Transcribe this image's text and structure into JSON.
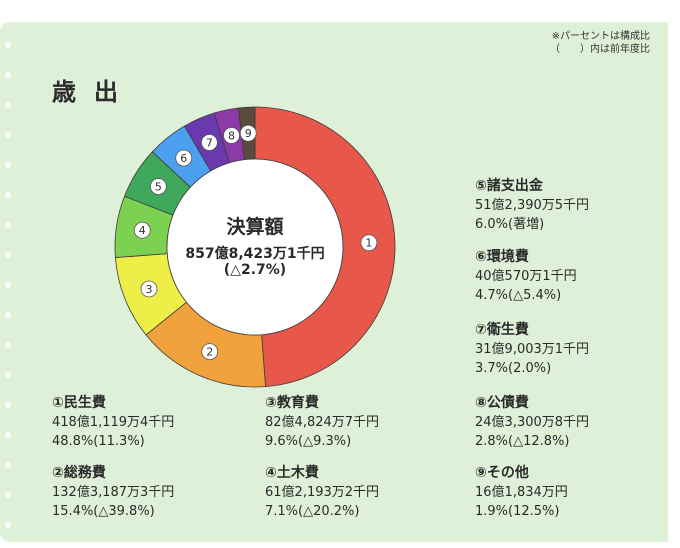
{
  "note": {
    "line1": "※パーセントは構成比",
    "line2": "（　　）内は前年度比"
  },
  "title": "歳出",
  "center": {
    "title": "決算額",
    "amount": "857億8,423万1千円",
    "rate": "(△2.7%)"
  },
  "chart_data": {
    "type": "pie",
    "donut": true,
    "unit_note": "構成比(%)",
    "categories": [
      "民生費",
      "総務費",
      "教育費",
      "土木費",
      "諸支出金",
      "環境費",
      "衛生費",
      "公債費",
      "その他"
    ],
    "markers": [
      "①",
      "②",
      "③",
      "④",
      "⑤",
      "⑥",
      "⑦",
      "⑧",
      "⑨"
    ],
    "values": [
      48.8,
      15.4,
      9.6,
      7.1,
      6.0,
      4.7,
      3.7,
      2.8,
      1.9
    ],
    "colors": [
      "#e8584a",
      "#f2a23c",
      "#edee47",
      "#7dd150",
      "#3fa85c",
      "#4d9ff0",
      "#6a39b0",
      "#8c3aa8",
      "#5c4a3e"
    ]
  },
  "items": [
    {
      "label": "①民生費",
      "amount": "418億1,119万4千円",
      "rate": "48.8%(11.3%)"
    },
    {
      "label": "②総務費",
      "amount": "132億3,187万3千円",
      "rate": "15.4%(△39.8%)"
    },
    {
      "label": "③教育費",
      "amount": "82億4,824万7千円",
      "rate": "9.6%(△9.3%)"
    },
    {
      "label": "④土木費",
      "amount": "61億2,193万2千円",
      "rate": "7.1%(△20.2%)"
    },
    {
      "label": "⑤諸支出金",
      "amount": "51億2,390万5千円",
      "rate": "6.0%(著増)"
    },
    {
      "label": "⑥環境費",
      "amount": "40億570万1千円",
      "rate": "4.7%(△5.4%)"
    },
    {
      "label": "⑦衛生費",
      "amount": "31億9,003万1千円",
      "rate": "3.7%(2.0%)"
    },
    {
      "label": "⑧公債費",
      "amount": "24億3,300万8千円",
      "rate": "2.8%(△12.8%)"
    },
    {
      "label": "⑨その他",
      "amount": "16億1,834万円",
      "rate": "1.9%(12.5%)"
    }
  ]
}
